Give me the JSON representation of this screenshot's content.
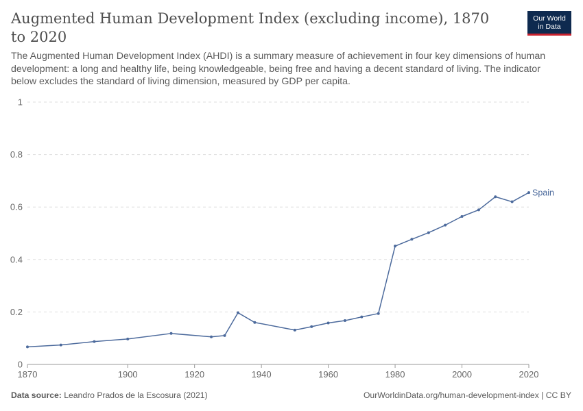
{
  "header": {
    "title": "Augmented Human Development Index (excluding income), 1870 to 2020",
    "subtitle": "The Augmented Human Development Index (AHDI) is a summary measure of achievement in four key dimensions of human development: a long and healthy life, being knowledgeable, being free and having a decent standard of living. The indicator below excludes the standard of living dimension, measured by GDP per capita."
  },
  "logo": {
    "line1": "Our World",
    "line2": "in Data"
  },
  "footer": {
    "source_label": "Data source:",
    "source_text": "Leandro Prados de la Escosura (2021)",
    "url": "OurWorldinData.org/human-development-index",
    "license": "CC BY"
  },
  "colors": {
    "series": "#4c6a9c",
    "grid": "#dddddd",
    "axis": "#999999",
    "logo_bg": "#0e2a4f",
    "logo_accent": "#c8222e"
  },
  "chart_data": {
    "type": "line",
    "xlim": [
      1870,
      2020
    ],
    "ylim": [
      0,
      1
    ],
    "x_ticks": [
      1870,
      1900,
      1920,
      1940,
      1960,
      1980,
      2000,
      2020
    ],
    "y_ticks": [
      0,
      0.2,
      0.4,
      0.6,
      0.8,
      1
    ],
    "grid": "horizontal-dashed",
    "series": [
      {
        "name": "Spain",
        "color": "#4c6a9c",
        "x": [
          1870,
          1880,
          1890,
          1900,
          1913,
          1925,
          1929,
          1933,
          1938,
          1950,
          1955,
          1960,
          1965,
          1970,
          1975,
          1980,
          1985,
          1990,
          1995,
          2000,
          2005,
          2010,
          2015,
          2020
        ],
        "y": [
          0.067,
          0.074,
          0.087,
          0.097,
          0.118,
          0.105,
          0.11,
          0.197,
          0.16,
          0.131,
          0.144,
          0.158,
          0.167,
          0.181,
          0.194,
          0.451,
          0.477,
          0.502,
          0.531,
          0.564,
          0.589,
          0.639,
          0.62,
          0.655
        ]
      }
    ]
  }
}
